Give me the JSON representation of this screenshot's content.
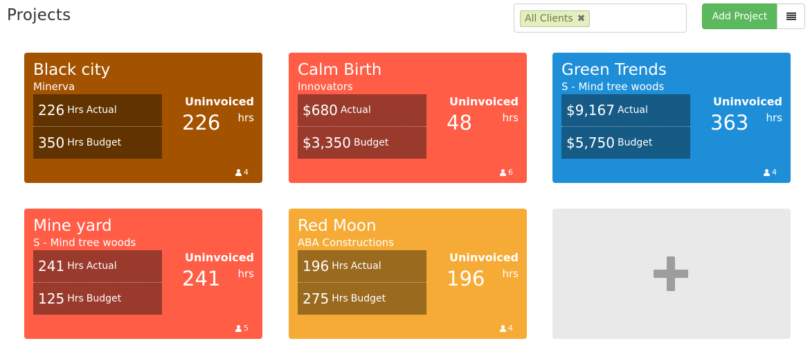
{
  "page": {
    "title": "Projects"
  },
  "filter": {
    "tag": "All Clients",
    "remove_symbol": "✖"
  },
  "toolbar": {
    "add_label": "Add Project",
    "view_icon": "list-icon"
  },
  "labels": {
    "uninvoiced": "Uninvoiced",
    "hrs": "hrs",
    "hrs_unit": "Hrs",
    "actual": "Actual",
    "budget": "Budget"
  },
  "projects": [
    {
      "name": "Black city",
      "client": "Minerva",
      "actual": "226",
      "budget": "350",
      "uninvoiced": "226",
      "members": "4",
      "color": "#a35200",
      "stat_bg": "#613300"
    },
    {
      "name": "Calm Birth",
      "client": "Innovators",
      "actual": "$680",
      "budget": "$3,350",
      "uninvoiced": "48",
      "members": "6",
      "color": "#ff5d46",
      "stat_bg": "#993a2d"
    },
    {
      "name": "Green Trends",
      "client": "S - Mind tree woods",
      "actual": "$9,167",
      "budget": "$5,750",
      "uninvoiced": "363",
      "members": "4",
      "color": "#1e8ed8",
      "stat_bg": "#165a86"
    },
    {
      "name": "Mine yard",
      "client": "S - Mind tree woods",
      "actual": "241",
      "budget": "125",
      "uninvoiced": "241",
      "members": "5",
      "color": "#ff5d46",
      "stat_bg": "#993a2d"
    },
    {
      "name": "Red Moon",
      "client": "ABA Constructions",
      "actual": "196",
      "budget": "275",
      "uninvoiced": "196",
      "members": "4",
      "color": "#f5ab35",
      "stat_bg": "#9a6a1f"
    }
  ],
  "add_card": {
    "icon": "plus-icon"
  }
}
